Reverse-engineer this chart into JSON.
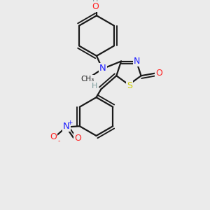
{
  "bg_color": "#ebebeb",
  "atom_colors": {
    "C": "#1a1a1a",
    "N": "#2020ff",
    "O": "#ff2020",
    "S": "#cccc00",
    "H": "#7a9a9a"
  },
  "bond_color": "#1a1a1a",
  "bond_width": 1.6
}
